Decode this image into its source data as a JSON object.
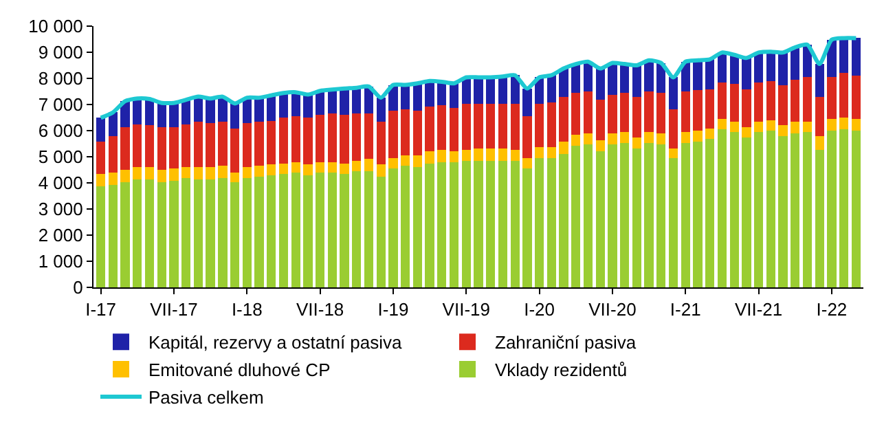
{
  "chart_data": {
    "type": "bar",
    "stacked": true,
    "categories": [
      "I-17",
      null,
      null,
      null,
      null,
      null,
      "VII-17",
      null,
      null,
      null,
      null,
      null,
      "I-18",
      null,
      null,
      null,
      null,
      null,
      "VII-18",
      null,
      null,
      null,
      null,
      null,
      "I-19",
      null,
      null,
      null,
      null,
      null,
      "VII-19",
      null,
      null,
      null,
      null,
      null,
      "I-20",
      null,
      null,
      null,
      null,
      null,
      "VII-20",
      null,
      null,
      null,
      null,
      null,
      "I-21",
      null,
      null,
      null,
      null,
      null,
      "VII-21",
      null,
      null,
      null,
      null,
      null,
      "I-22",
      null,
      null
    ],
    "series": [
      {
        "name": "Vklady rezidentů",
        "color": "#9acd32",
        "values": [
          3870,
          3910,
          4030,
          4130,
          4130,
          4030,
          4080,
          4180,
          4130,
          4130,
          4180,
          4030,
          4180,
          4230,
          4290,
          4340,
          4390,
          4300,
          4390,
          4390,
          4340,
          4440,
          4440,
          4230,
          4540,
          4650,
          4600,
          4750,
          4800,
          4800,
          4850,
          4850,
          4850,
          4850,
          4850,
          4540,
          4960,
          4960,
          5110,
          5420,
          5470,
          5220,
          5470,
          5520,
          5320,
          5520,
          5470,
          4960,
          5520,
          5580,
          5680,
          6040,
          5940,
          5730,
          5940,
          5990,
          5780,
          5890,
          5940,
          5270,
          5990,
          6040,
          5990
        ]
      },
      {
        "name": "Emitované dluhové CP",
        "color": "#ffc000",
        "values": [
          470,
          480,
          460,
          470,
          470,
          460,
          460,
          420,
          470,
          470,
          470,
          360,
          420,
          420,
          410,
          410,
          410,
          400,
          410,
          410,
          410,
          410,
          470,
          470,
          420,
          410,
          460,
          470,
          470,
          420,
          420,
          470,
          470,
          470,
          420,
          420,
          410,
          410,
          470,
          410,
          420,
          410,
          420,
          420,
          410,
          420,
          420,
          360,
          420,
          410,
          410,
          410,
          410,
          410,
          410,
          410,
          420,
          460,
          410,
          510,
          460,
          470,
          460
        ]
      },
      {
        "name": "Zahraniční pasiva",
        "color": "#dc2a1e",
        "values": [
          1240,
          1390,
          1650,
          1650,
          1600,
          1650,
          1600,
          1650,
          1750,
          1700,
          1700,
          1700,
          1700,
          1700,
          1670,
          1740,
          1760,
          1810,
          1810,
          1860,
          1860,
          1810,
          1750,
          1650,
          1800,
          1760,
          1700,
          1710,
          1700,
          1650,
          1750,
          1700,
          1700,
          1700,
          1750,
          1600,
          1650,
          1700,
          1700,
          1610,
          1600,
          1550,
          1490,
          1500,
          1550,
          1550,
          1550,
          1500,
          1550,
          1550,
          1500,
          1400,
          1450,
          1450,
          1500,
          1500,
          1550,
          1610,
          1710,
          1500,
          1610,
          1700,
          1660
        ]
      },
      {
        "name": "Kapitál, rezervy a ostatní pasiva",
        "color": "#1f22a8",
        "values": [
          910,
          920,
          990,
          980,
          1010,
          920,
          920,
          930,
          950,
          930,
          950,
          950,
          960,
          910,
          980,
          950,
          910,
          870,
          910,
          910,
          1000,
          980,
          1030,
          910,
          990,
          930,
          1050,
          970,
          900,
          940,
          1020,
          1020,
          1020,
          1050,
          1100,
          1050,
          1020,
          1050,
          1100,
          1110,
          1150,
          1200,
          1210,
          1110,
          1220,
          1200,
          1150,
          1220,
          1150,
          1150,
          1140,
          1140,
          1100,
          1190,
          1140,
          1120,
          1240,
          1230,
          1230,
          1270,
          1420,
          1330,
          1430
        ]
      },
      {
        "name": "Pasiva celkem",
        "type": "line",
        "color": "#1ec8d2",
        "values": [
          6490,
          6700,
          7130,
          7230,
          7210,
          7060,
          7060,
          7180,
          7300,
          7230,
          7300,
          7040,
          7260,
          7260,
          7350,
          7440,
          7470,
          7380,
          7520,
          7570,
          7610,
          7640,
          7690,
          7260,
          7750,
          7750,
          7810,
          7900,
          7870,
          7810,
          8040,
          8040,
          8040,
          8070,
          8120,
          7610,
          8040,
          8120,
          8380,
          8550,
          8640,
          8380,
          8590,
          8550,
          8500,
          8690,
          8590,
          8040,
          8640,
          8690,
          8730,
          8990,
          8900,
          8780,
          8990,
          9020,
          8990,
          9190,
          9290,
          8550,
          9480,
          9540,
          9540
        ]
      }
    ],
    "ylim": [
      0,
      10000
    ],
    "yticks": [
      0,
      {
        "value": 1000,
        "label": "1 000"
      },
      {
        "value": 2000,
        "label": "2 000"
      },
      {
        "value": 3000,
        "label": "3 000"
      },
      {
        "value": 4000,
        "label": "4 000"
      },
      {
        "value": 5000,
        "label": "5 000"
      },
      {
        "value": 6000,
        "label": "6 000"
      },
      {
        "value": 7000,
        "label": "7 000"
      },
      {
        "value": 8000,
        "label": "8 000"
      },
      {
        "value": 9000,
        "label": "9 000"
      },
      {
        "value": 10000,
        "label": "10 000"
      }
    ],
    "legend": "bottom"
  }
}
